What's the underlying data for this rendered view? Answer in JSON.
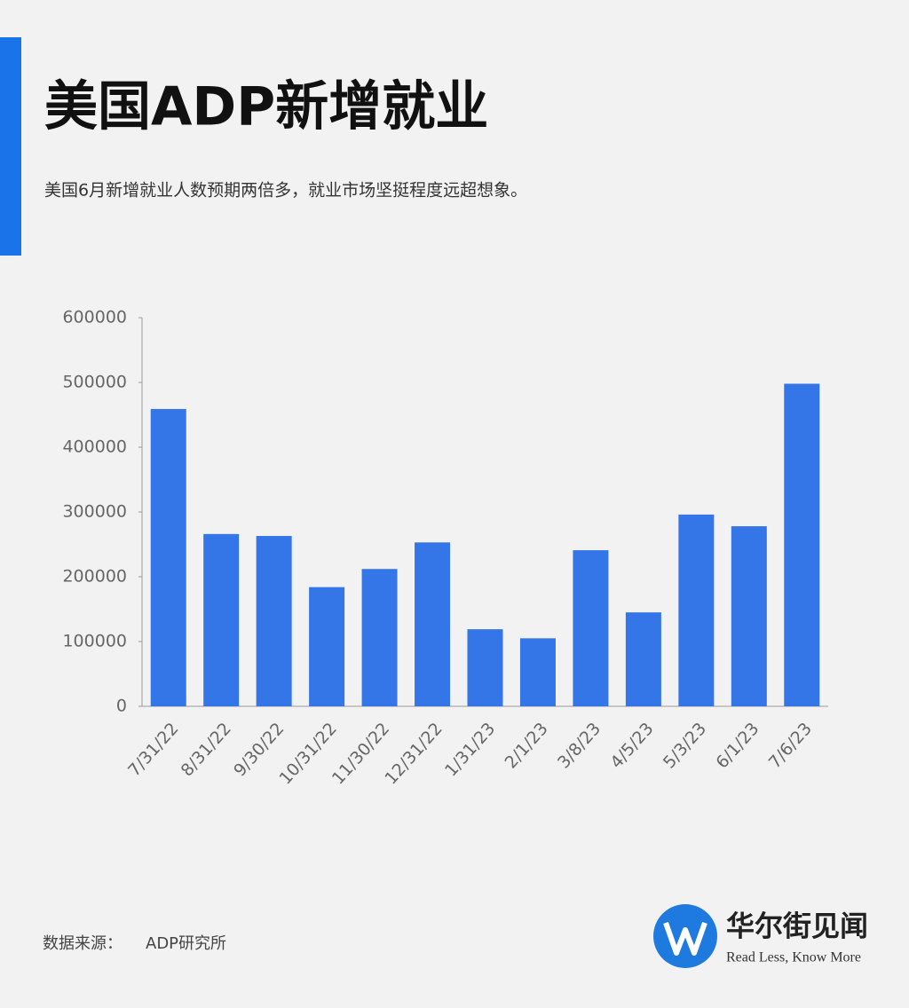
{
  "chart_data": {
    "type": "bar",
    "title": "美国ADP新增就业",
    "subtitle": "美国6月新增就业人数预期两倍多，就业市场坚挺程度远超想象。",
    "categories": [
      "7/31/22",
      "8/31/22",
      "9/30/22",
      "10/31/22",
      "11/30/22",
      "12/31/22",
      "1/31/23",
      "2/1/23",
      "3/8/23",
      "4/5/23",
      "5/3/23",
      "6/1/23",
      "7/6/23"
    ],
    "values": [
      459000,
      266000,
      263000,
      184000,
      212000,
      253000,
      119000,
      105000,
      241000,
      145000,
      296000,
      278000,
      498000
    ],
    "color": "#3475e8",
    "ylim": [
      0,
      600000
    ],
    "yticks": [
      0,
      100000,
      200000,
      300000,
      400000,
      500000,
      600000
    ],
    "grid": false,
    "source_label": "数据来源：",
    "source": "ADP研究所",
    "brand": "华尔街见闻",
    "tagline": "Read Less, Know More"
  }
}
